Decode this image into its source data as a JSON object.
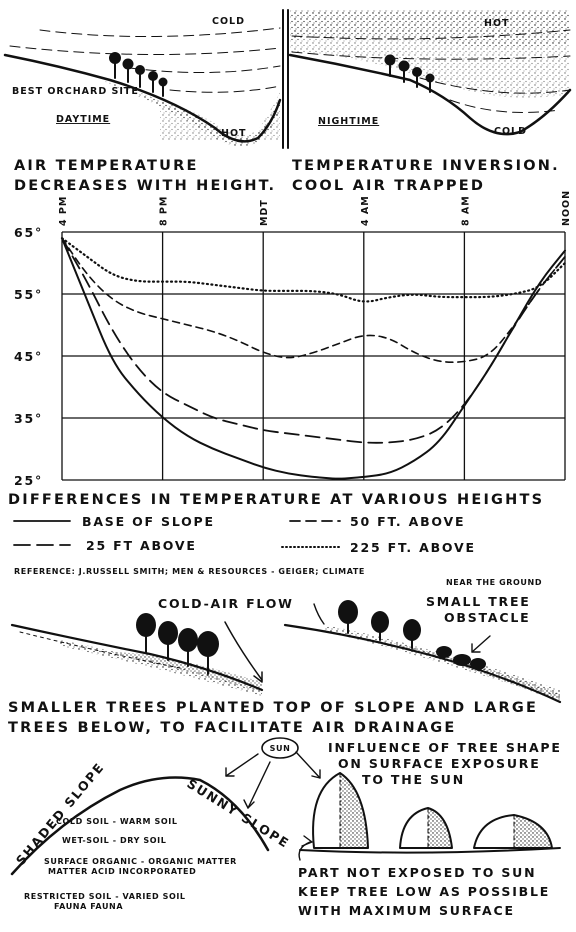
{
  "top": {
    "day_cold": "COLD",
    "day_hot": "HOT",
    "best_site": "BEST ORCHARD SITE",
    "daytime": "DAYTIME",
    "night_hot": "HOT",
    "night_cold": "COLD",
    "nighttime": "NIGHTIME",
    "cap_left_1": "AIR TEMPERATURE",
    "cap_left_2": "DECREASES WITH HEIGHT.",
    "cap_right_1": "TEMPERATURE INVERSION.",
    "cap_right_2": "COOL AIR TRAPPED"
  },
  "chart_data": {
    "type": "line",
    "x_ticks": [
      "4 PM",
      "8 PM",
      "MDT",
      "4 AM",
      "8 AM",
      "NOON"
    ],
    "y_ticks": [
      "65°",
      "55°",
      "45°",
      "35°",
      "25°"
    ],
    "ylim": [
      25,
      65
    ],
    "series": [
      {
        "name": "BASE OF SLOPE",
        "style": "solid",
        "x": [
          0,
          1,
          2,
          3,
          4,
          5,
          6,
          7,
          8,
          9,
          10,
          10.5,
          11,
          11.5,
          12,
          13,
          14,
          15,
          16,
          17,
          18,
          19,
          20
        ],
        "values": [
          64,
          54,
          44,
          39,
          35,
          32,
          30,
          28.5,
          27,
          26,
          25.5,
          25.3,
          25.2,
          25.3,
          25.5,
          26,
          28,
          31,
          37,
          43,
          50,
          57,
          62
        ]
      },
      {
        "name": "25 FT ABOVE",
        "style": "longdash",
        "x": [
          0,
          1,
          2,
          3,
          4,
          5,
          6,
          7,
          8,
          9,
          10,
          11,
          12,
          13,
          14,
          15,
          16,
          17,
          18,
          19,
          20
        ],
        "values": [
          64,
          57,
          49,
          43,
          39,
          37,
          35,
          34,
          33,
          32.5,
          32,
          31.5,
          31,
          31,
          31.5,
          33,
          37,
          43,
          50,
          56,
          61
        ]
      },
      {
        "name": "50 FT. ABOVE",
        "style": "dash",
        "x": [
          0,
          1,
          2,
          3,
          4,
          5,
          6,
          7,
          8,
          9,
          10,
          11,
          12,
          13,
          14,
          15,
          16,
          17,
          18,
          19,
          20
        ],
        "values": [
          64,
          58,
          54,
          52,
          51,
          50,
          49,
          47.5,
          45.5,
          44.5,
          45.5,
          47,
          48.5,
          48,
          45.5,
          44,
          44,
          45,
          50,
          56,
          61
        ]
      },
      {
        "name": "225 FT. ABOVE",
        "style": "dot",
        "x": [
          0,
          1,
          2,
          3,
          4,
          5,
          6,
          7,
          8,
          9,
          10,
          11,
          12,
          13,
          14,
          15,
          16,
          17,
          18,
          19,
          20
        ],
        "values": [
          64,
          61,
          58,
          57,
          57,
          57,
          56.5,
          56,
          55.5,
          55.5,
          55.5,
          55,
          53.5,
          54.5,
          55,
          54.5,
          54.5,
          54.5,
          55,
          56,
          60
        ]
      }
    ],
    "legend_title": "DIFFERENCES IN TEMPERATURE AT VARIOUS HEIGHTS",
    "grid": true
  },
  "reference": {
    "line1": "REFERENCE: J.RUSSELL SMITH; MEN & RESOURCES - GEIGER; CLIMATE",
    "line2": "NEAR THE GROUND"
  },
  "drainage": {
    "cold_air_flow": "COLD-AIR FLOW",
    "small_tree_1": "SMALL TREE",
    "small_tree_2": "OBSTACLE",
    "caption_1": "SMALLER TREES PLANTED TOP OF SLOPE AND LARGE",
    "caption_2": "TREES BELOW, TO FACILITATE AIR DRAINAGE"
  },
  "slopes": {
    "sun": "SUN",
    "shaded": "SHADED SLOPE",
    "sunny": "SUNNY SLOPE",
    "row1": "COLD SOIL - WARM SOIL",
    "row2": "WET-SOIL - DRY SOIL",
    "row3a": "SURFACE ORGANIC - ORGANIC MATTER",
    "row3b": "MATTER ACID      INCORPORATED",
    "row4a": "RESTRICTED SOIL - VARIED SOIL",
    "row4b": "FAUNA              FAUNA"
  },
  "shape": {
    "title_1": "INFLUENCE OF TREE SHAPE",
    "title_2": "ON SURFACE EXPOSURE",
    "title_3": "TO THE SUN",
    "note_1": "PART NOT EXPOSED TO SUN",
    "note_2": "KEEP TREE LOW AS POSSIBLE",
    "note_3": "WITH MAXIMUM SURFACE"
  }
}
